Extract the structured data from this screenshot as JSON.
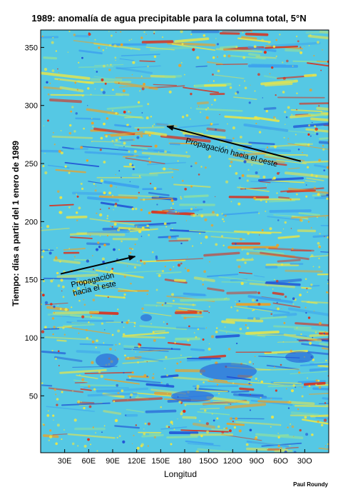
{
  "chart_data": {
    "type": "heatmap",
    "title": "1989: anomalía de agua precipitable para la columna total, 5°N",
    "xlabel": "Longitud",
    "ylabel": "Tiempo:  días a partir del 1 enero de 1989",
    "x_ticks": [
      "30E",
      "60E",
      "90E",
      "120E",
      "150E",
      "180",
      "150O",
      "120O",
      "90O",
      "60O",
      "30O"
    ],
    "x_tick_degrees_east": [
      30,
      60,
      90,
      120,
      150,
      180,
      210,
      240,
      270,
      300,
      330
    ],
    "xlim": [
      0,
      360
    ],
    "y_ticks": [
      50,
      100,
      150,
      200,
      250,
      300,
      350
    ],
    "ylim": [
      1,
      365
    ],
    "colorscale": [
      "#1f4fd6",
      "#3b9ff0",
      "#4fd0e8",
      "#8fe0a0",
      "#e8e64a",
      "#f2a020",
      "#e02a14"
    ],
    "annotations": [
      {
        "text": "Propagación hacia el oeste",
        "arrow_from": [
          325,
          252
        ],
        "arrow_to": [
          158,
          282
        ]
      },
      {
        "text_lines": [
          "Propagación",
          "hacia el este"
        ],
        "arrow_from": [
          25,
          155
        ],
        "arrow_to": [
          118,
          170
        ]
      }
    ],
    "credit": "Paul Roundy"
  }
}
